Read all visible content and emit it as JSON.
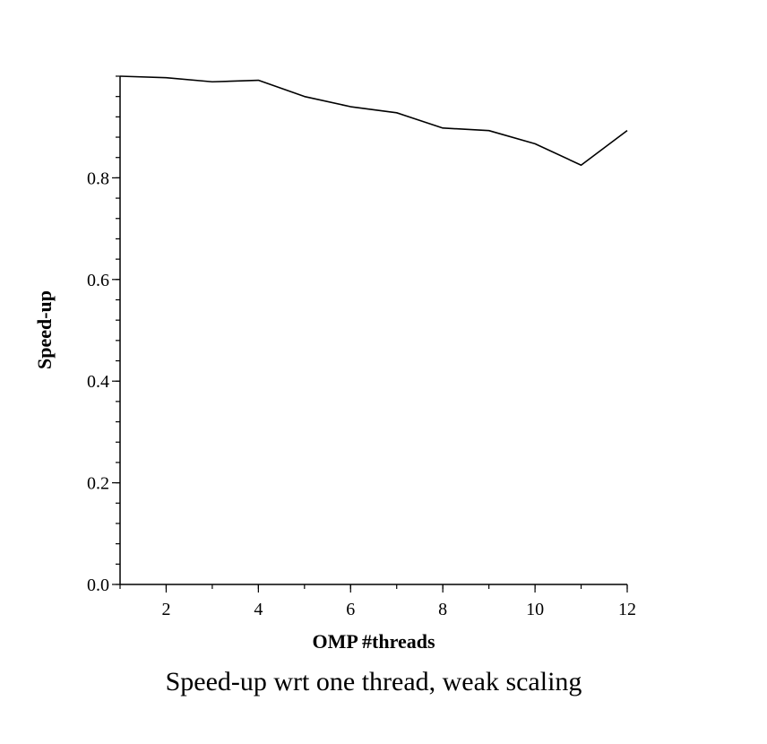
{
  "chart_data": {
    "type": "line",
    "caption": "Speed-up wrt one thread, weak scaling",
    "xlabel": "OMP #threads",
    "ylabel": "Speed-up",
    "xlim": [
      1,
      12
    ],
    "ylim": [
      0,
      1
    ],
    "x_ticks": [
      2,
      4,
      6,
      8,
      10,
      12
    ],
    "x_tick_labels": [
      "2",
      "4",
      "6",
      "8",
      "10",
      "12"
    ],
    "y_ticks": [
      0.0,
      0.2,
      0.4,
      0.6,
      0.8
    ],
    "y_tick_labels": [
      "0.0",
      "0.2",
      "0.4",
      "0.6",
      "0.8"
    ],
    "x_minor_step": 1,
    "y_minor_step": 0.04,
    "grid": false,
    "line_color": "#000000",
    "series": [
      {
        "x": [
          1,
          2,
          3,
          4,
          5,
          6,
          7,
          8,
          9,
          10,
          11,
          12
        ],
        "values": [
          1.0,
          0.997,
          0.989,
          0.992,
          0.96,
          0.94,
          0.928,
          0.898,
          0.893,
          0.867,
          0.825,
          0.893
        ]
      }
    ]
  }
}
